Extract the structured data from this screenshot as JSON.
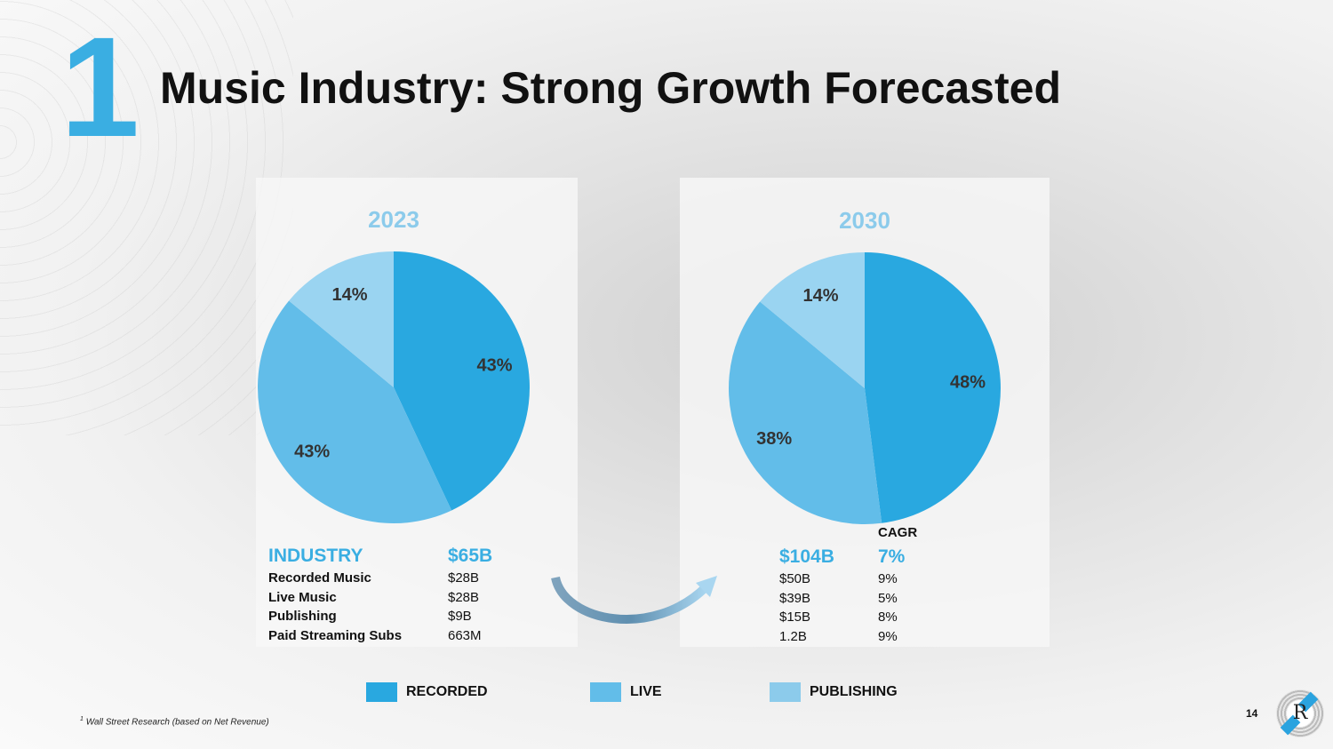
{
  "slide_number_badge": "1",
  "title": "Music Industry: Strong Growth Forecasted",
  "colors": {
    "recorded": "#29a8e0",
    "live": "#62bde9",
    "publishing": "#9ad4f1"
  },
  "chart_data": [
    {
      "type": "pie",
      "title": "2023",
      "categories": [
        "Recorded",
        "Live",
        "Publishing"
      ],
      "values": [
        43,
        43,
        14
      ],
      "labels": [
        "43%",
        "43%",
        "14%"
      ]
    },
    {
      "type": "pie",
      "title": "2030",
      "categories": [
        "Recorded",
        "Live",
        "Publishing"
      ],
      "values": [
        48,
        38,
        14
      ],
      "labels": [
        "48%",
        "38%",
        "14%"
      ]
    }
  ],
  "table_2023": {
    "header": "INDUSTRY",
    "total": "$65B",
    "rows": [
      {
        "label": "Recorded Music",
        "value": "$28B"
      },
      {
        "label": "Live Music",
        "value": "$28B"
      },
      {
        "label": "Publishing",
        "value": "$9B"
      },
      {
        "label": "Paid Streaming Subs",
        "value": "663M"
      }
    ]
  },
  "table_2030": {
    "cagr_header": "CAGR",
    "total": "$104B",
    "total_cagr": "7%",
    "rows": [
      {
        "value": "$50B",
        "cagr": "9%"
      },
      {
        "value": "$39B",
        "cagr": "5%"
      },
      {
        "value": "$15B",
        "cagr": "8%"
      },
      {
        "value": "1.2B",
        "cagr": "9%"
      }
    ]
  },
  "legend": [
    "RECORDED",
    "LIVE",
    "PUBLISHING"
  ],
  "footnote_mark": "1",
  "footnote": "Wall Street Research (based on Net Revenue)",
  "page_number": "14",
  "logo_letter": "R"
}
